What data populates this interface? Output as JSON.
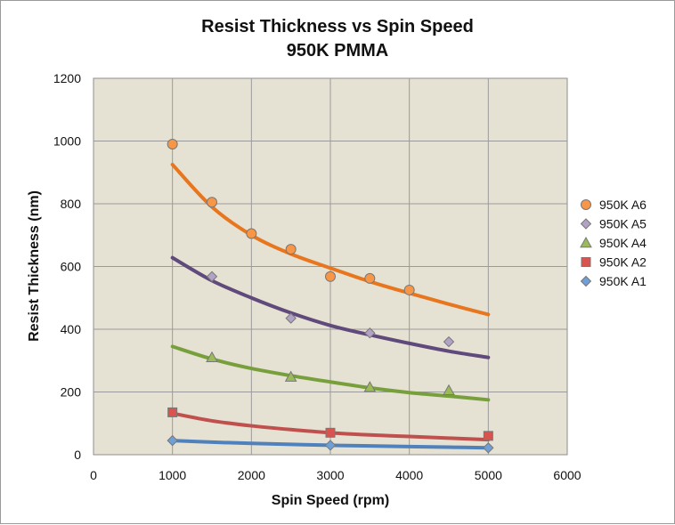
{
  "chart_data": {
    "type": "scatter",
    "title": "Resist Thickness vs Spin Speed",
    "subtitle": "950K PMMA",
    "xlabel": "Spin Speed (rpm)",
    "ylabel": "Resist Thickness (nm)",
    "xlim": [
      0,
      6000
    ],
    "ylim": [
      0,
      1200
    ],
    "xticks": [
      0,
      1000,
      2000,
      3000,
      4000,
      5000,
      6000
    ],
    "yticks": [
      0,
      200,
      400,
      600,
      800,
      1000,
      1200
    ],
    "grid": true,
    "legend_position": "right",
    "plot_background": "#e6e2d3",
    "series": [
      {
        "name": "950K A6",
        "marker": "circle",
        "color": "#f79646",
        "line_color": "#e8761f",
        "x": [
          1000,
          1500,
          2000,
          2500,
          3000,
          3500,
          4000
        ],
        "y": [
          990,
          805,
          705,
          655,
          568,
          562,
          525
        ],
        "fit": {
          "x": [
            1000,
            1500,
            2000,
            2500,
            3000,
            3500,
            4000,
            4500,
            5000
          ],
          "y": [
            925,
            790,
            700,
            640,
            595,
            552,
            515,
            480,
            447
          ]
        }
      },
      {
        "name": "950K A5",
        "marker": "diamond",
        "color": "#b3a2c7",
        "line_color": "#604a7b",
        "x": [
          1500,
          2500,
          3500,
          4500
        ],
        "y": [
          568,
          435,
          388,
          360
        ],
        "fit": {
          "x": [
            1000,
            1500,
            2000,
            2500,
            3000,
            3500,
            4000,
            4500,
            5000
          ],
          "y": [
            628,
            555,
            500,
            452,
            412,
            382,
            355,
            330,
            310
          ]
        }
      },
      {
        "name": "950K A4",
        "marker": "triangle",
        "color": "#9bbb59",
        "line_color": "#77a03c",
        "x": [
          1500,
          2500,
          3500,
          4500
        ],
        "y": [
          310,
          248,
          215,
          205
        ],
        "fit": {
          "x": [
            1000,
            1500,
            2000,
            2500,
            3000,
            3500,
            4000,
            4500,
            5000
          ],
          "y": [
            345,
            305,
            275,
            252,
            232,
            213,
            198,
            187,
            175
          ]
        }
      },
      {
        "name": "950K A2",
        "marker": "square",
        "color": "#d9534f",
        "line_color": "#c0504d",
        "x": [
          1000,
          3000,
          5000
        ],
        "y": [
          135,
          70,
          60
        ],
        "fit": {
          "x": [
            1000,
            1500,
            2000,
            2500,
            3000,
            3500,
            4000,
            4500,
            5000
          ],
          "y": [
            132,
            108,
            92,
            80,
            70,
            63,
            58,
            53,
            48
          ]
        }
      },
      {
        "name": "950K A1",
        "marker": "diamond",
        "color": "#6f9fd8",
        "line_color": "#4f81bd",
        "x": [
          1000,
          3000,
          5000
        ],
        "y": [
          45,
          30,
          22
        ],
        "fit": {
          "x": [
            1000,
            1500,
            2000,
            2500,
            3000,
            3500,
            4000,
            4500,
            5000
          ],
          "y": [
            45,
            40,
            36,
            33,
            30,
            28,
            26,
            24,
            22
          ]
        }
      }
    ]
  }
}
